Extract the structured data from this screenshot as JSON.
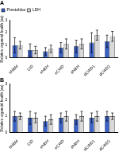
{
  "chart_data": [
    {
      "type": "bar",
      "title": "A",
      "y_label": "Relative organoid health (au)",
      "categories": [
        "hNBM",
        "CtD",
        "eNBH",
        "eCWD",
        "dNBH",
        "dCWD1",
        "dCWD2"
      ],
      "series": [
        {
          "name": "Prestoblue",
          "color": "#3b62c6",
          "values": [
            1.0,
            0.6,
            0.5,
            0.8,
            0.9,
            1.2,
            1.3
          ],
          "errors": [
            0.6,
            0.5,
            0.3,
            0.4,
            0.5,
            0.8,
            0.5
          ]
        },
        {
          "name": "LDH",
          "color": "#d9d9d9",
          "values": [
            1.0,
            0.6,
            0.7,
            1.1,
            1.1,
            1.8,
            1.7
          ],
          "errors": [
            0.3,
            0.3,
            0.3,
            0.4,
            0.4,
            0.4,
            0.4
          ]
        }
      ],
      "ylim": [
        0,
        3
      ],
      "yticks": [
        0,
        1,
        2,
        3
      ],
      "legend": "top"
    },
    {
      "type": "bar",
      "title": "B",
      "y_label": "Relative organoid health (au)",
      "categories": [
        "hNBM",
        "CtD",
        "eNBH",
        "eCWD",
        "dNBH",
        "dCWD1",
        "dCWD2"
      ],
      "series": [
        {
          "color": "#3b62c6",
          "values": [
            1.0,
            0.9,
            0.7,
            0.9,
            0.8,
            0.9,
            1.0
          ],
          "errors": [
            0.3,
            0.4,
            0.3,
            0.3,
            0.3,
            0.3,
            0.3
          ]
        },
        {
          "color": "#d9d9d9",
          "values": [
            1.0,
            0.9,
            0.8,
            1.0,
            1.0,
            1.0,
            1.0
          ],
          "errors": [
            0.2,
            0.3,
            0.3,
            0.3,
            0.3,
            0.3,
            0.2
          ]
        }
      ],
      "ylim": [
        0,
        3
      ],
      "yticks": [
        0,
        1,
        2,
        3
      ]
    }
  ]
}
